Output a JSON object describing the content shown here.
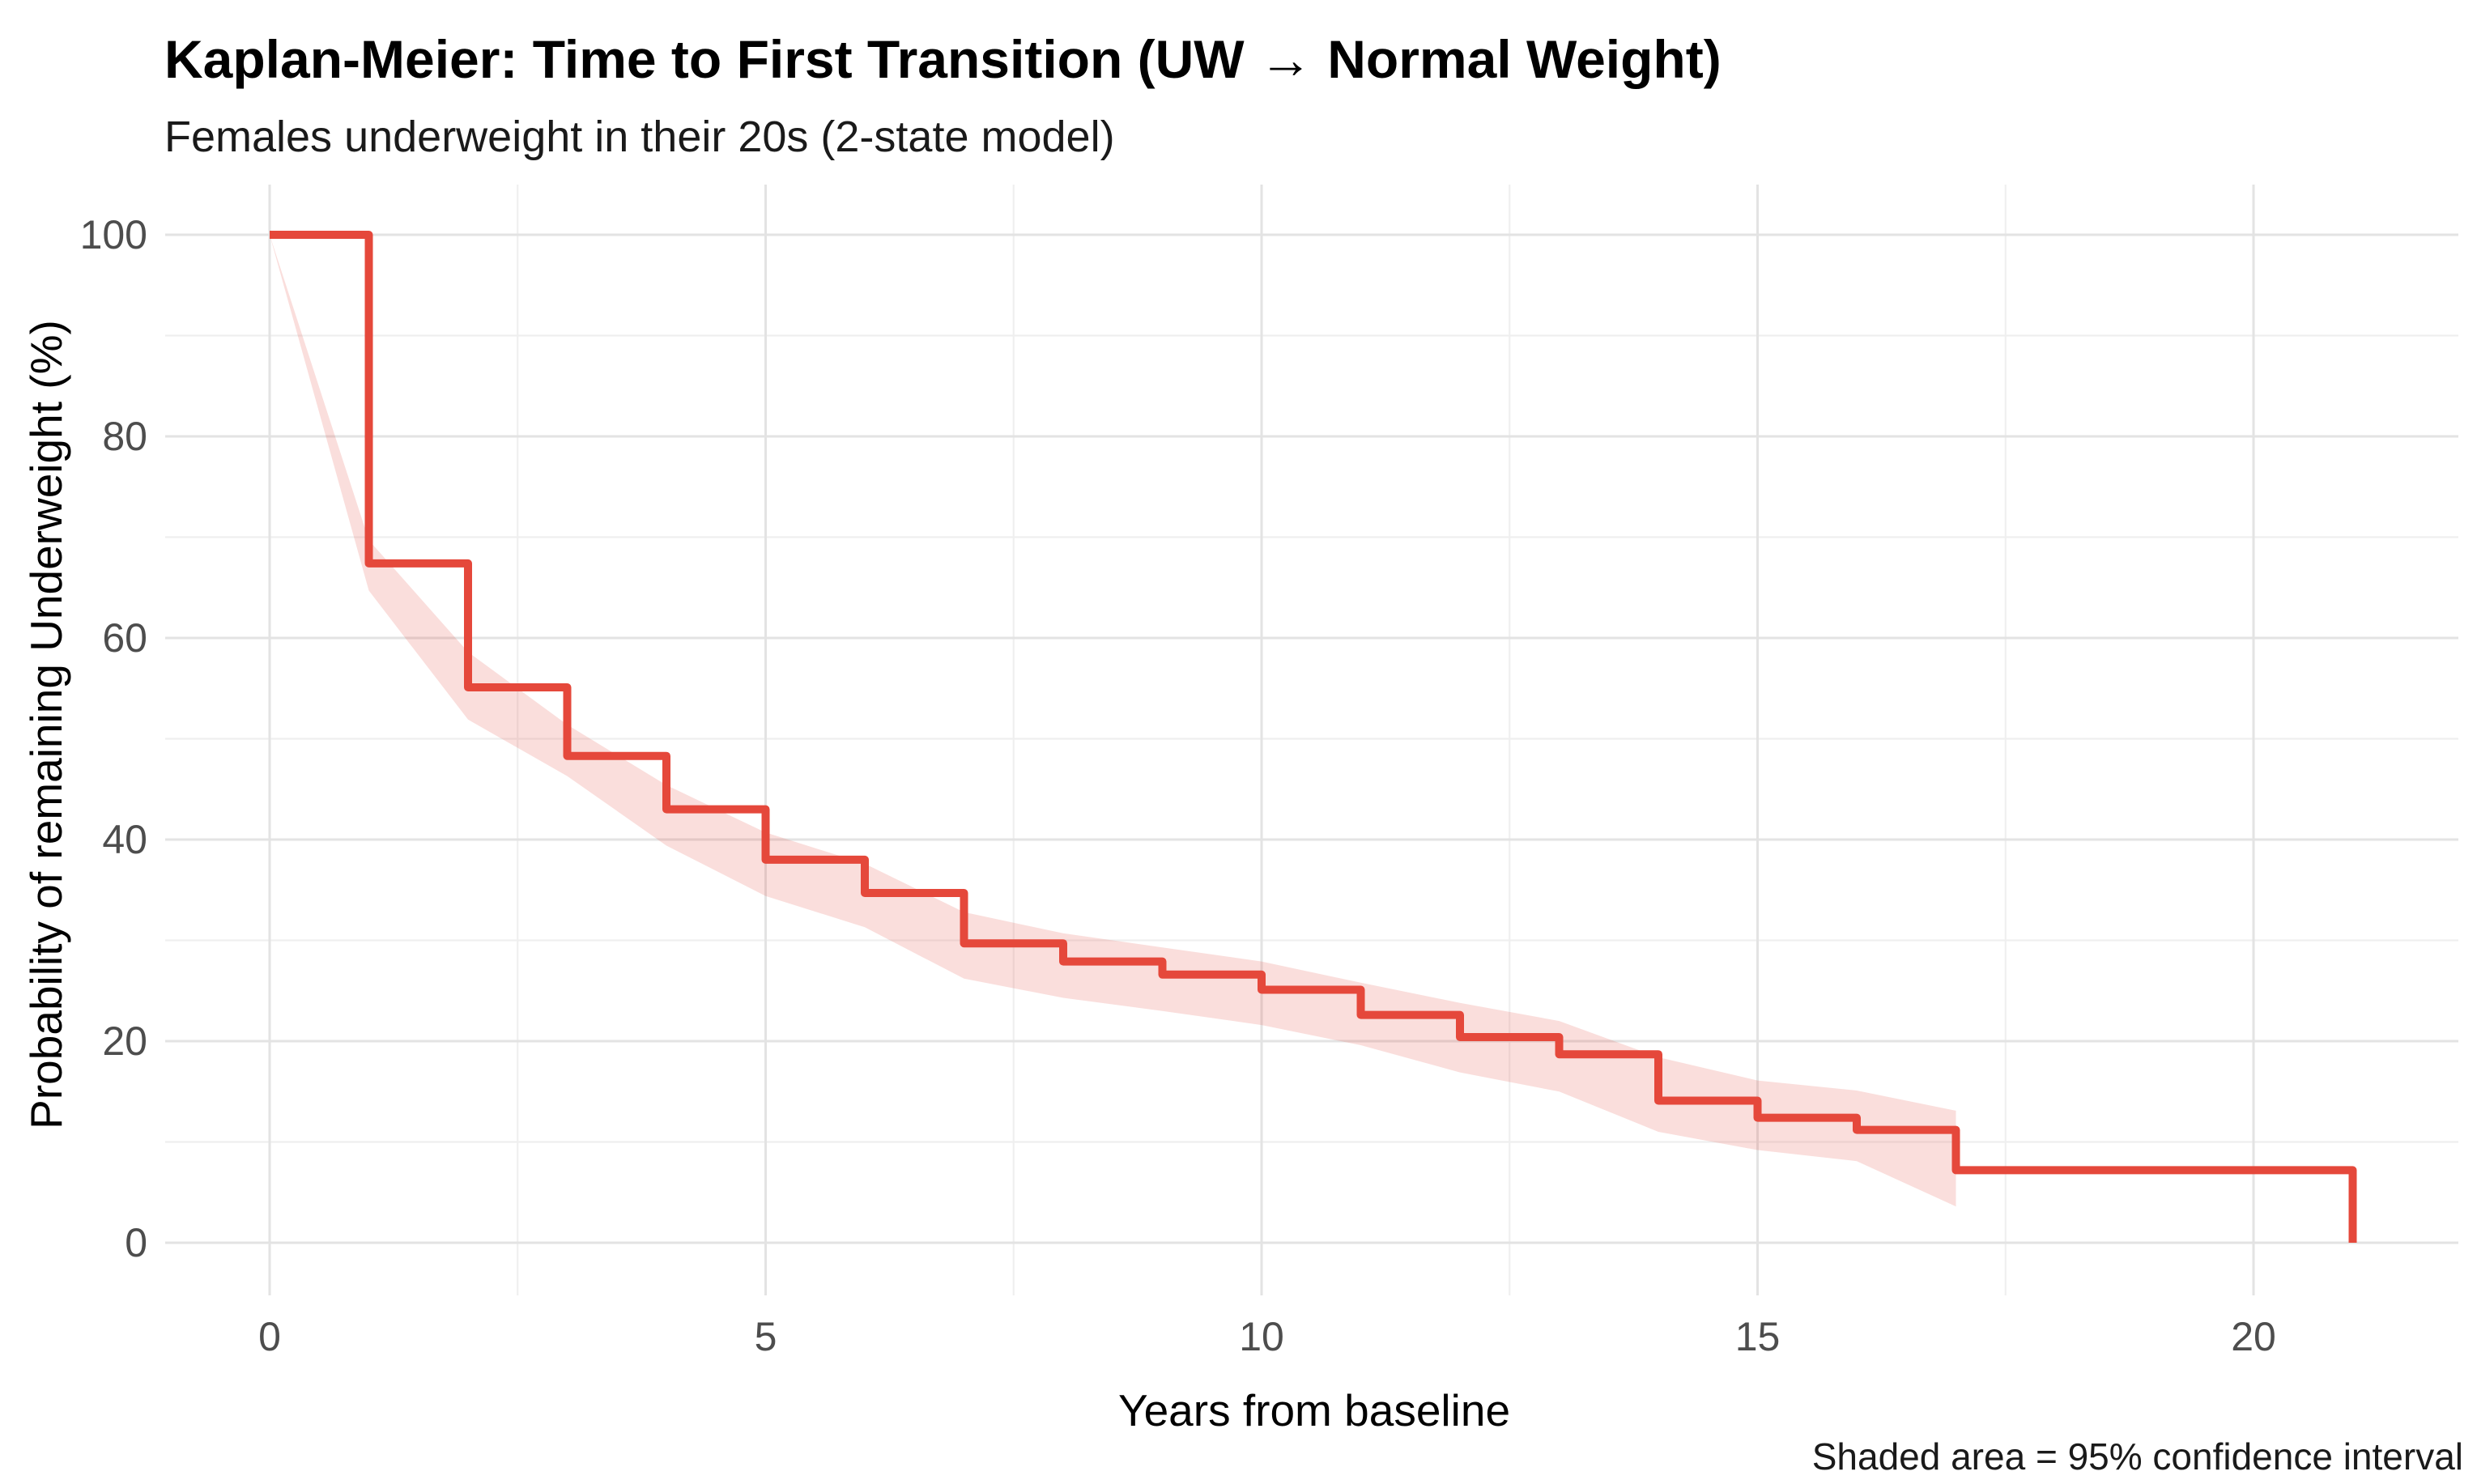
{
  "header": {
    "title": "Kaplan-Meier: Time to First Transition (UW → Normal Weight)",
    "subtitle": "Females underweight in their 20s (2-state model)"
  },
  "caption": "Shaded area = 95% confidence interval",
  "chart_data": {
    "type": "line",
    "variant": "kaplan_meier_step_with_ci_band",
    "title": "Kaplan-Meier: Time to First Transition (UW → Normal Weight)",
    "subtitle": "Females underweight in their 20s (2-state model)",
    "xlabel": "Years from baseline",
    "ylabel": "Probability of remaining Underweight (%)",
    "caption": "Shaded area = 95% confidence interval",
    "xlim": [
      0,
      21
    ],
    "ylim": [
      0,
      100
    ],
    "x_ticks_major": [
      0,
      5,
      10,
      15,
      20
    ],
    "x_ticks_minor": [
      2.5,
      7.5,
      12.5,
      17.5
    ],
    "y_ticks_major": [
      0,
      20,
      40,
      60,
      80,
      100
    ],
    "y_ticks_minor": [
      10,
      30,
      50,
      70,
      90
    ],
    "grid": "major+minor",
    "legend_position": "none",
    "series": [
      {
        "name": "KM survival estimate (step function, drops at event years)",
        "type": "step-after",
        "color": "#E5483B",
        "points": [
          [
            0,
            100
          ],
          [
            1,
            67.4
          ],
          [
            2,
            55.1
          ],
          [
            3,
            48.3
          ],
          [
            4,
            43.0
          ],
          [
            5,
            38.0
          ],
          [
            6,
            34.7
          ],
          [
            7,
            29.7
          ],
          [
            8,
            27.9
          ],
          [
            9,
            26.6
          ],
          [
            10,
            25.1
          ],
          [
            11,
            22.6
          ],
          [
            12,
            20.4
          ],
          [
            13,
            18.7
          ],
          [
            14,
            14.1
          ],
          [
            15,
            12.4
          ],
          [
            16,
            11.2
          ],
          [
            17,
            7.2
          ],
          [
            21,
            0
          ]
        ]
      },
      {
        "name": "95% confidence interval band (linear between event times, ends at year 17)",
        "type": "band",
        "fill": "#E5483B",
        "fill_opacity": 0.18,
        "points_t_lo_hi": [
          [
            0,
            100,
            100
          ],
          [
            1,
            64.7,
            69.7
          ],
          [
            2,
            51.9,
            58.6
          ],
          [
            3,
            46.3,
            51.4
          ],
          [
            4,
            39.4,
            45.4
          ],
          [
            5,
            34.4,
            40.7
          ],
          [
            6,
            31.3,
            37.6
          ],
          [
            7,
            26.2,
            32.8
          ],
          [
            8,
            24.3,
            30.7
          ],
          [
            9,
            23.0,
            29.3
          ],
          [
            10,
            21.6,
            27.9
          ],
          [
            11,
            19.6,
            25.8
          ],
          [
            12,
            16.9,
            23.8
          ],
          [
            13,
            15.0,
            22.0
          ],
          [
            14,
            11.0,
            18.4
          ],
          [
            15,
            9.2,
            16.1
          ],
          [
            16,
            8.1,
            15.1
          ],
          [
            17,
            3.6,
            13.1
          ]
        ]
      }
    ]
  },
  "style": {
    "line_color": "#E5483B",
    "line_width": 10,
    "band_color": "#E5483B",
    "band_opacity": 0.18,
    "grid_major_color": "#E3E3E3",
    "grid_minor_color": "#EFEFEF",
    "tick_label_color": "#4D4D4D",
    "text_color": "#000000",
    "background": "#FFFFFF"
  }
}
